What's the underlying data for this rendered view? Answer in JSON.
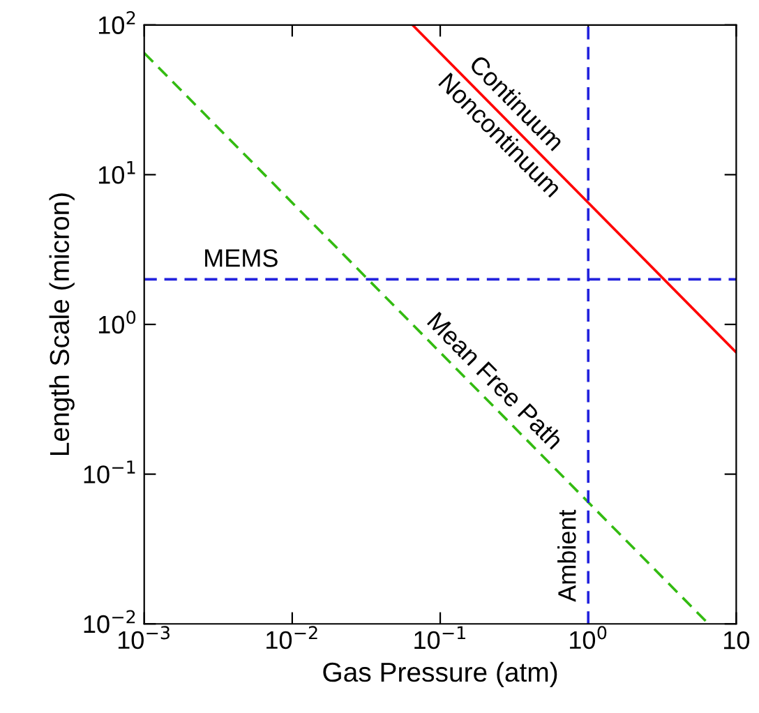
{
  "chart_data": {
    "type": "line",
    "xlabel": "Gas Pressure (atm)",
    "ylabel": "Length Scale (micron)",
    "log": "xy",
    "xlim": [
      0.001,
      10
    ],
    "ylim": [
      0.01,
      100
    ],
    "xticks": [
      {
        "value": 0.001,
        "label": "10$^{−3}$"
      },
      {
        "value": 0.01,
        "label": "10$^{−2}$"
      },
      {
        "value": 0.1,
        "label": "10$^{−1}$"
      },
      {
        "value": 1,
        "label": "10$^{0}$"
      },
      10
    ],
    "yticks": [
      {
        "value": 0.01,
        "label": "10$^{−2}$"
      },
      {
        "value": 0.1,
        "label": "10$^{−1}$"
      },
      {
        "value": 1,
        "label": "10$^{0}$"
      },
      {
        "value": 10,
        "label": "10$^{1}$"
      },
      {
        "value": 100,
        "label": "10$^{2}$"
      }
    ],
    "grid": false,
    "legend": false,
    "series": [
      {
        "color": "#ff0000",
        "x": [
          0.065,
          10
        ],
        "values": [
          100,
          0.65
        ],
        "line_style": "solid"
      },
      {
        "name": "Mean Free Path",
        "color": "#33bb11",
        "x": [
          0.001,
          6.5
        ],
        "values": [
          65,
          0.01
        ],
        "line_style": "dashed"
      }
    ],
    "ref_lines": [
      {
        "axis": "y",
        "value": 2,
        "label": "MEMS",
        "color": "#2222dd",
        "line_style": "dashed"
      },
      {
        "axis": "x",
        "value": 1,
        "label": "Ambient",
        "color": "#2222dd",
        "line_style": "dashed"
      }
    ],
    "annotations": [
      "Continuum",
      "Noncontinuum"
    ]
  }
}
